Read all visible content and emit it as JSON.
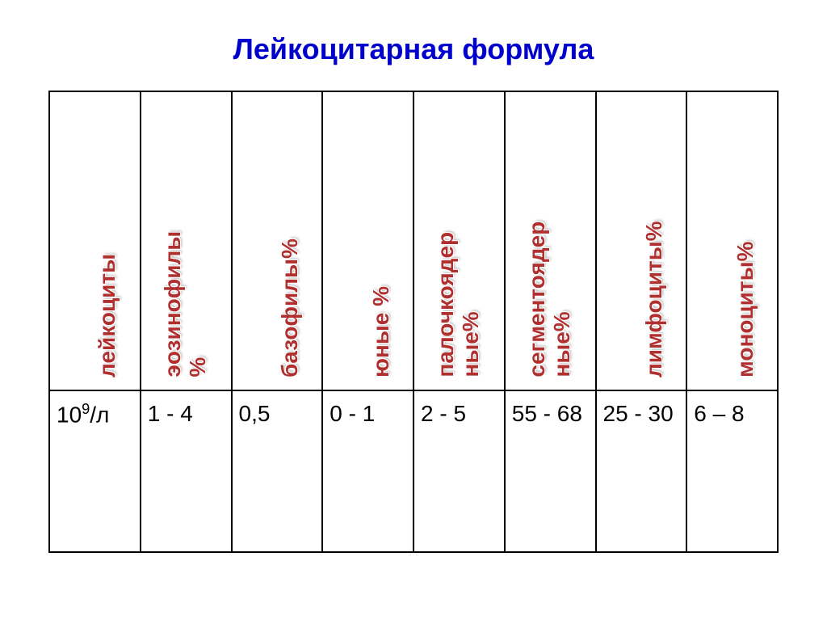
{
  "title": "Лейкоцитарная формула",
  "table": {
    "headers": [
      {
        "line1": "лейкоциты",
        "line2": ""
      },
      {
        "line1": "эозинофилы",
        "line2": "%"
      },
      {
        "line1": "базофилы%",
        "line2": ""
      },
      {
        "line1": "юные %",
        "line2": ""
      },
      {
        "line1": "палочкоядер",
        "line2": "ные%"
      },
      {
        "line1": "сегментоядер",
        "line2": "ные%"
      },
      {
        "line1": "лимфоциты%",
        "line2": ""
      },
      {
        "line1": "моноциты%",
        "line2": ""
      }
    ],
    "values": [
      "10⁹/л",
      "1 - 4",
      "0,5",
      "0 - 1",
      "2 - 5",
      "55 - 68",
      "25 - 30",
      "6 – 8"
    ]
  },
  "colors": {
    "title": "#0000cc",
    "header_text": "#b03030",
    "value_text": "#000000",
    "border": "#000000",
    "background": "#ffffff"
  },
  "typography": {
    "title_fontsize": 36,
    "header_fontsize": 28,
    "value_fontsize": 28,
    "font_family": "Arial"
  }
}
